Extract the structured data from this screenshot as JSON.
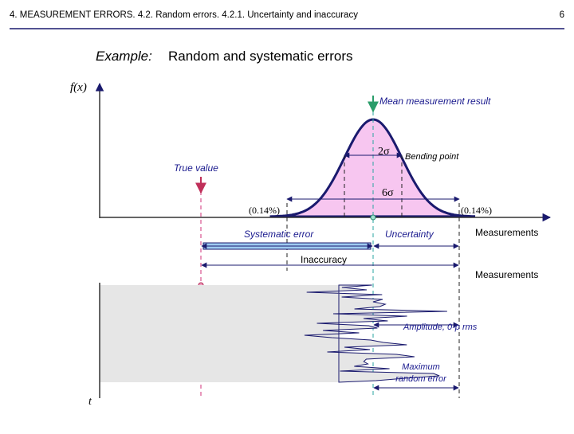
{
  "header": {
    "title": "4. MEASUREMENT ERRORS. 4.2. Random errors. 4.2.1. Uncertainty and inaccuracy",
    "page": "6"
  },
  "slide": {
    "title_prefix": "Example:",
    "title": "Random and systematic errors"
  },
  "labels": {
    "fx": "f(x)",
    "mean": "Mean measurement result",
    "two_sigma": "2σ",
    "bending": "Bending point",
    "true_value": "True value",
    "six_sigma": "6σ",
    "pct_left": "(0.14%)",
    "pct_right": "(0.14%)",
    "systematic": "Systematic error",
    "uncertainty": "Uncertainty",
    "measurements_top": "Measurements",
    "inaccuracy": "Inaccuracy",
    "measurements_bottom": "Measurements",
    "amplitude": "Amplitude, 0-p rms",
    "max_error_1": "Maximum",
    "max_error_2": "random error",
    "t": "t"
  }
}
